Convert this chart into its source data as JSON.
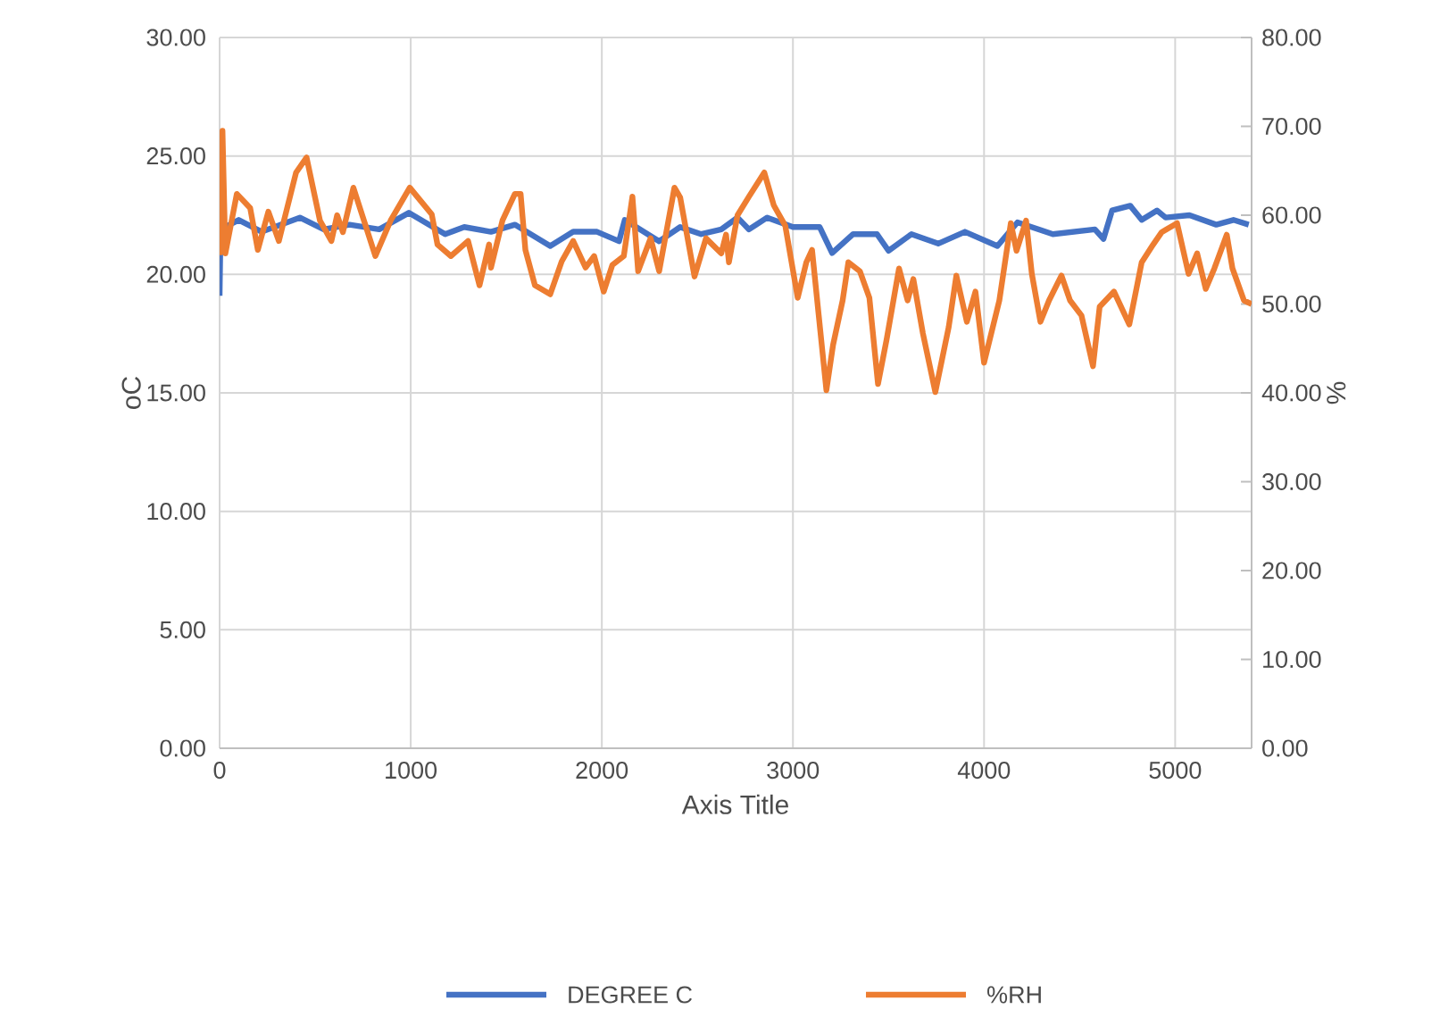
{
  "chart_data": {
    "type": "line",
    "xlabel": "Axis Title",
    "ylabel": "oC",
    "y2label": "%",
    "xlim": [
      0,
      5400
    ],
    "xticks": [
      0,
      1000,
      2000,
      3000,
      4000,
      5000
    ],
    "ylim": [
      0,
      30
    ],
    "yticks": [
      {
        "value": 0,
        "label": "0.00"
      },
      {
        "value": 5,
        "label": "5.00"
      },
      {
        "value": 10,
        "label": "10.00"
      },
      {
        "value": 15,
        "label": "15.00"
      },
      {
        "value": 20,
        "label": "20.00"
      },
      {
        "value": 25,
        "label": "25.00"
      },
      {
        "value": 30,
        "label": "30.00"
      }
    ],
    "y2lim": [
      0,
      80
    ],
    "y2ticks": [
      {
        "value": 0,
        "label": "0.00"
      },
      {
        "value": 10,
        "label": "10.00"
      },
      {
        "value": 20,
        "label": "20.00"
      },
      {
        "value": 30,
        "label": "30.00"
      },
      {
        "value": 40,
        "label": "40.00"
      },
      {
        "value": 50,
        "label": "50.00"
      },
      {
        "value": 60,
        "label": "60.00"
      },
      {
        "value": 70,
        "label": "70.00"
      },
      {
        "value": 80,
        "label": "80.00"
      }
    ],
    "grid": true,
    "legend": "bottom",
    "marker": "none",
    "line_style": "solid",
    "series": [
      {
        "name": "DEGREE C",
        "color": "#4472c4",
        "x": [
          0,
          5,
          100,
          220,
          420,
          545,
          680,
          835,
          990,
          1180,
          1280,
          1420,
          1545,
          1730,
          1850,
          1975,
          2090,
          2120,
          2300,
          2410,
          2520,
          2625,
          2710,
          2770,
          2865,
          3000,
          3140,
          3205,
          3315,
          3440,
          3500,
          3620,
          3760,
          3900,
          4070,
          4175,
          4360,
          4580,
          4625,
          4670,
          4765,
          4825,
          4905,
          4950,
          5075,
          5215,
          5305,
          5385
        ],
        "values": [
          19.1,
          21.9,
          22.3,
          21.8,
          22.4,
          21.9,
          22.1,
          21.9,
          22.6,
          21.7,
          22.0,
          21.8,
          22.1,
          21.2,
          21.8,
          21.8,
          21.4,
          22.3,
          21.4,
          22.0,
          21.7,
          21.9,
          22.4,
          21.9,
          22.4,
          22.0,
          22.0,
          20.9,
          21.7,
          21.7,
          21.0,
          21.7,
          21.3,
          21.8,
          21.2,
          22.2,
          21.7,
          21.9,
          21.5,
          22.7,
          22.9,
          22.3,
          22.7,
          22.4,
          22.5,
          22.1,
          22.3,
          22.1
        ]
      },
      {
        "name": "%RH",
        "color": "#ed7d31",
        "axis": "y2",
        "x": [
          0,
          15,
          30,
          90,
          160,
          200,
          255,
          310,
          400,
          455,
          525,
          585,
          615,
          645,
          700,
          815,
          895,
          995,
          1110,
          1140,
          1210,
          1300,
          1360,
          1410,
          1420,
          1480,
          1545,
          1575,
          1600,
          1650,
          1730,
          1790,
          1850,
          1915,
          1960,
          2010,
          2055,
          2115,
          2160,
          2190,
          2255,
          2300,
          2380,
          2410,
          2485,
          2545,
          2625,
          2650,
          2665,
          2710,
          2770,
          2850,
          2900,
          2960,
          3025,
          3070,
          3100,
          3135,
          3175,
          3210,
          3260,
          3290,
          3350,
          3400,
          3445,
          3490,
          3555,
          3600,
          3630,
          3680,
          3745,
          3815,
          3855,
          3910,
          3955,
          4000,
          4080,
          4140,
          4170,
          4220,
          4250,
          4295,
          4340,
          4405,
          4450,
          4510,
          4570,
          4605,
          4680,
          4760,
          4825,
          4885,
          4930,
          5010,
          5070,
          5115,
          5160,
          5205,
          5270,
          5300,
          5360,
          5400
        ],
        "values": [
          55.5,
          69.5,
          55.7,
          62.4,
          60.8,
          56.1,
          60.4,
          57.1,
          64.8,
          66.5,
          59.4,
          57.1,
          60.0,
          58.1,
          63.1,
          55.4,
          59.4,
          63.1,
          60.1,
          56.7,
          55.4,
          57.1,
          52.1,
          56.7,
          54.1,
          59.4,
          62.4,
          62.4,
          56.1,
          52.1,
          51.1,
          54.8,
          57.1,
          54.1,
          55.4,
          51.4,
          54.4,
          55.4,
          62.1,
          53.7,
          57.4,
          53.7,
          63.1,
          62.0,
          53.1,
          57.4,
          55.7,
          57.8,
          54.7,
          60.0,
          62.1,
          64.8,
          61.1,
          58.8,
          50.7,
          54.7,
          56.1,
          48.7,
          40.3,
          45.4,
          50.4,
          54.7,
          53.7,
          50.7,
          41.0,
          46.0,
          54.0,
          50.4,
          52.8,
          46.7,
          40.1,
          47.4,
          53.2,
          48.0,
          51.4,
          43.4,
          50.4,
          59.1,
          56.0,
          59.4,
          53.4,
          48.0,
          50.4,
          53.2,
          50.4,
          48.7,
          43.0,
          49.7,
          51.4,
          47.7,
          54.7,
          56.7,
          58.1,
          59.1,
          53.4,
          55.7,
          51.7,
          54.0,
          57.8,
          54.0,
          50.4,
          50.0
        ]
      }
    ]
  }
}
